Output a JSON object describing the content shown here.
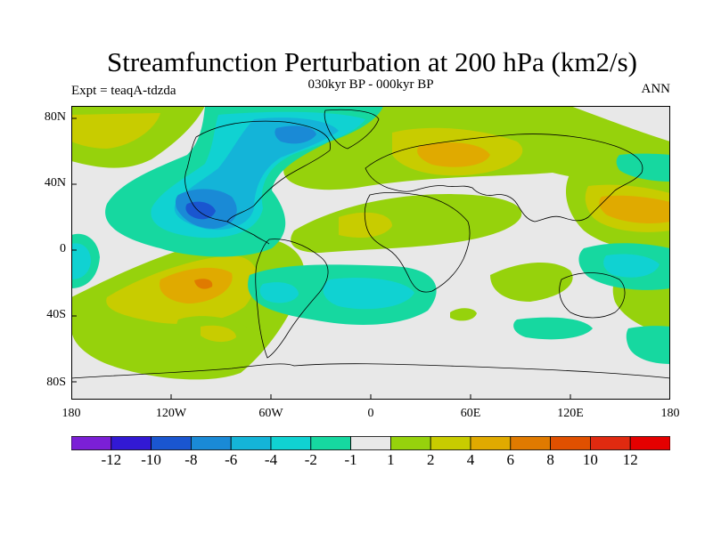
{
  "title": "Streamfunction Perturbation at 200 hPa (km2/s)",
  "subtitle": "030kyr BP - 000kyr BP",
  "left_label": "Expt = teaqA-tdzda",
  "right_label": "ANN",
  "lat_ticks": [
    "80N",
    "40N",
    "0",
    "40S",
    "80S"
  ],
  "lon_ticks": [
    "180",
    "120W",
    "60W",
    "0",
    "60E",
    "120E",
    "180"
  ],
  "colorbar": {
    "labels": [
      "-12",
      "-10",
      "-8",
      "-6",
      "-4",
      "-2",
      "-1",
      "1",
      "2",
      "4",
      "6",
      "8",
      "10",
      "12"
    ],
    "colors": [
      "#7b1fd6",
      "#3219d4",
      "#1a56d0",
      "#1a8ad6",
      "#14b4d8",
      "#10d2d2",
      "#16d8a0",
      "#e8e8e8",
      "#96d20c",
      "#c8cc00",
      "#e0aa00",
      "#e07a00",
      "#e05000",
      "#e02a10",
      "#e40000"
    ]
  },
  "fill_colors": {
    "background": "#e8e8e8",
    "plus_one": "#96d20c",
    "plus_two": "#c8cc00",
    "plus_four": "#e0aa00",
    "plus_six": "#e07a00",
    "minus_one": "#16d8a0",
    "minus_two": "#10d2d2",
    "minus_four": "#14b4d8",
    "minus_six": "#1a8ad6",
    "minus_eight": "#1a56d0"
  },
  "coast_color": "#000000"
}
